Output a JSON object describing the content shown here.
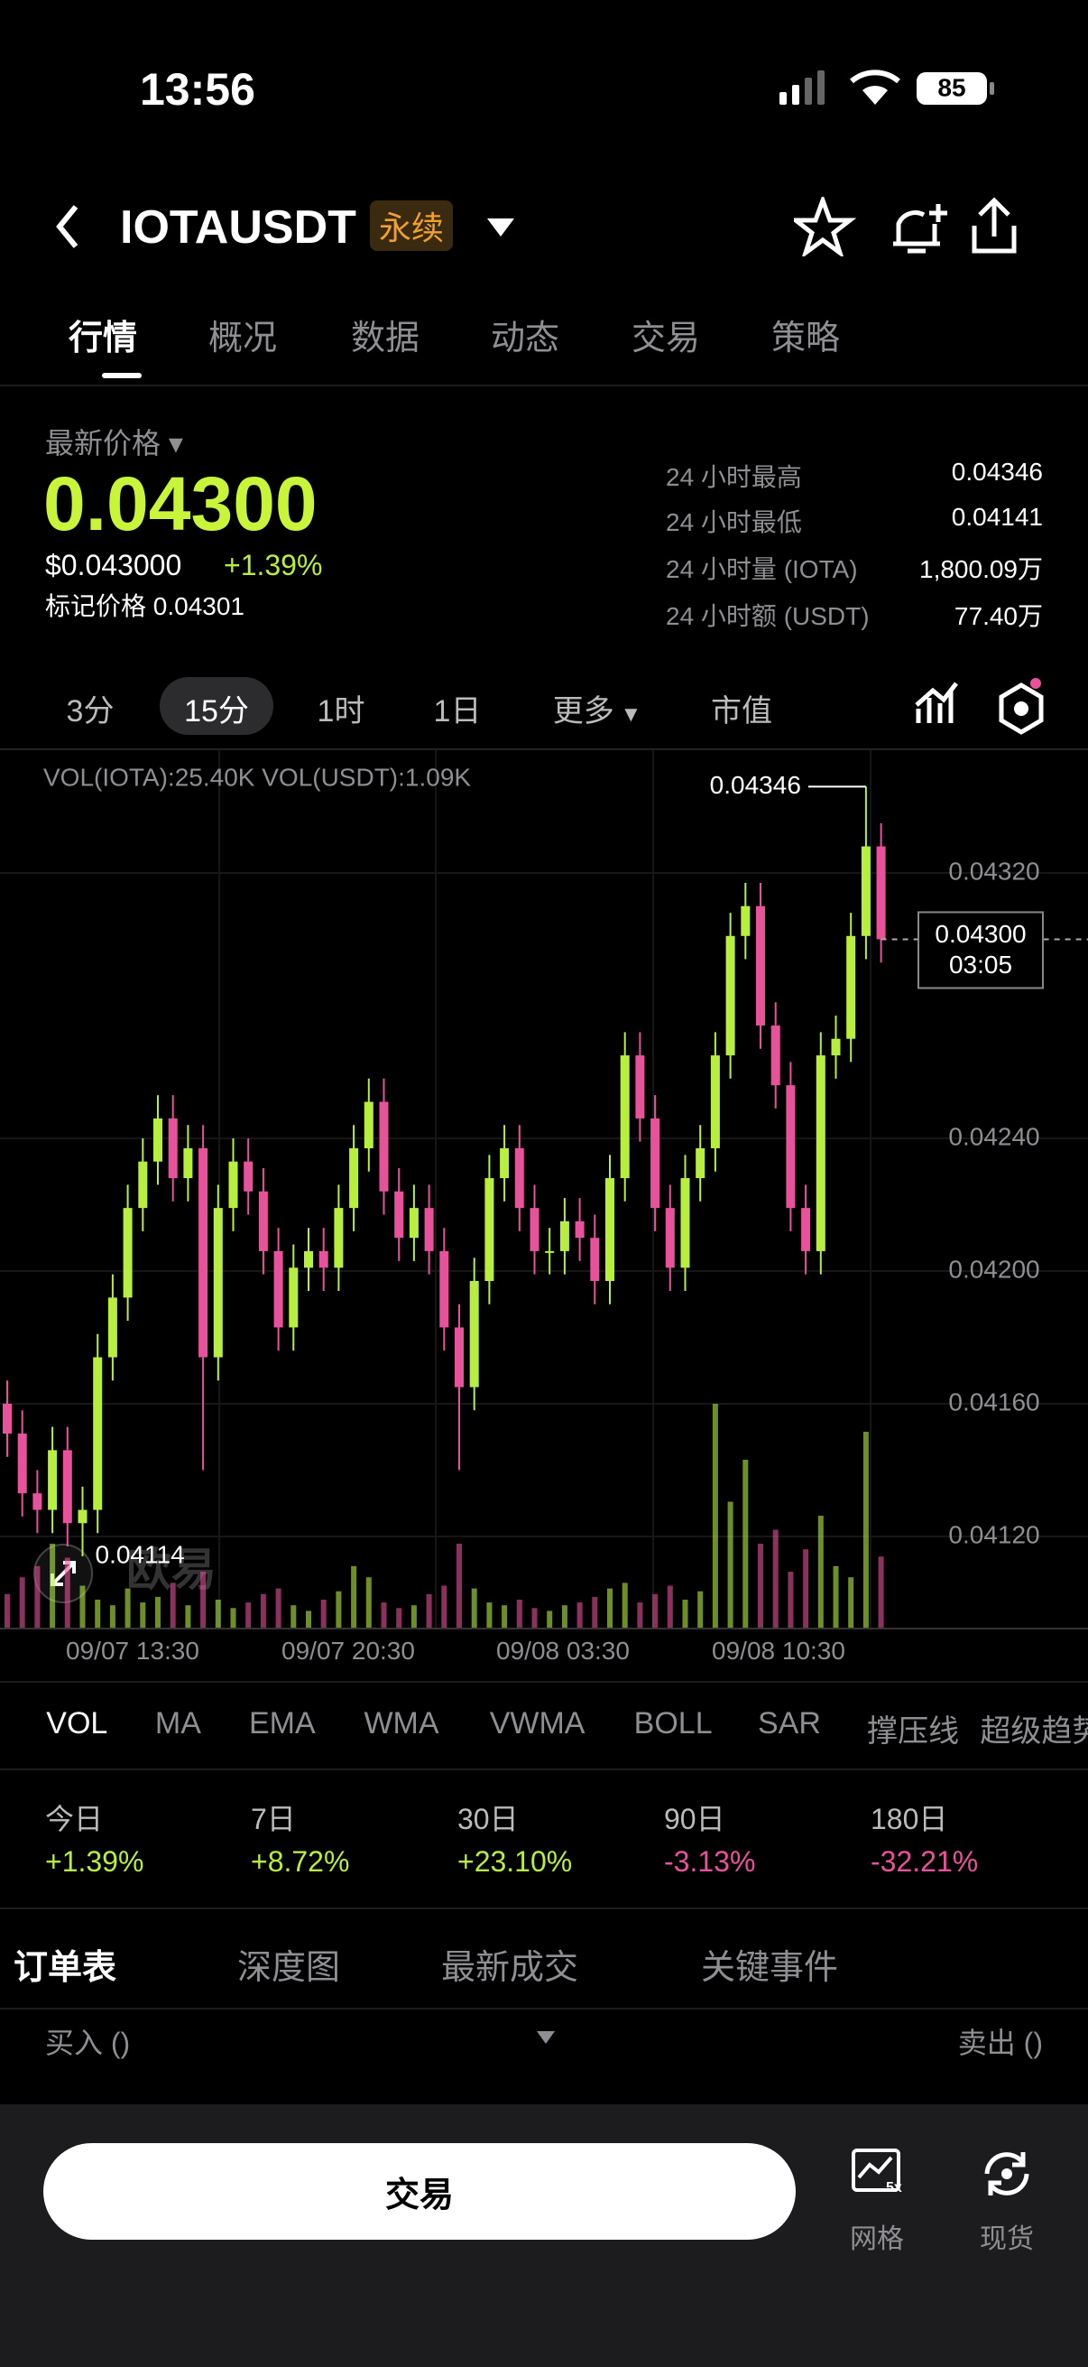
{
  "status": {
    "time": "13:56",
    "battery": "85"
  },
  "header": {
    "symbol": "IOTAUSDT",
    "tag": "永续"
  },
  "tabs": [
    "行情",
    "概况",
    "数据",
    "动态",
    "交易",
    "策略"
  ],
  "price": {
    "label": "最新价格",
    "last": "0.04300",
    "usd": "$0.043000",
    "change": "+1.39%",
    "mark": "标记价格 0.04301"
  },
  "stats": [
    {
      "label": "24 小时最高",
      "value": "0.04346"
    },
    {
      "label": "24 小时最低",
      "value": "0.04141"
    },
    {
      "label": "24 小时量 (IOTA)",
      "value": "1,800.09万"
    },
    {
      "label": "24 小时额 (USDT)",
      "value": "77.40万"
    }
  ],
  "intervals": [
    "3分",
    "15分",
    "1时",
    "1日",
    "更多",
    "市值"
  ],
  "chart": {
    "type": "candlestick",
    "vol_label": "VOL(IOTA):25.40K VOL(USDT):1.09K",
    "high_label": "0.04346",
    "low_label": "0.04114",
    "last_label": "0.04300",
    "countdown": "03:05",
    "ylim": [
      0.040925,
      0.04357
    ],
    "yticks": [
      {
        "value": 0.0432,
        "label": "0.04320"
      },
      {
        "value": 0.0424,
        "label": "0.04240"
      },
      {
        "value": 0.042,
        "label": "0.04200"
      },
      {
        "value": 0.0416,
        "label": "0.04160"
      },
      {
        "value": 0.0412,
        "label": "0.04120"
      }
    ],
    "up_color": "#b8ef3e",
    "down_color": "#e8529b",
    "xlabels": [
      "09/07 13:30",
      "09/07 20:30",
      "09/08 03:30",
      "09/08 10:30"
    ],
    "candles": [
      [
        0.0416,
        0.04167,
        0.04144,
        0.04151
      ],
      [
        0.04151,
        0.04158,
        0.04126,
        0.04133
      ],
      [
        0.04133,
        0.0414,
        0.04121,
        0.04128
      ],
      [
        0.04128,
        0.04153,
        0.04121,
        0.04146
      ],
      [
        0.04146,
        0.04153,
        0.04117,
        0.04124
      ],
      [
        0.04124,
        0.04135,
        0.04114,
        0.04128
      ],
      [
        0.04128,
        0.04181,
        0.04121,
        0.04174
      ],
      [
        0.04174,
        0.04199,
        0.04167,
        0.04192
      ],
      [
        0.04192,
        0.04226,
        0.04185,
        0.04219
      ],
      [
        0.04219,
        0.0424,
        0.04212,
        0.04233
      ],
      [
        0.04233,
        0.04253,
        0.04226,
        0.04246
      ],
      [
        0.04246,
        0.04253,
        0.04221,
        0.04228
      ],
      [
        0.04228,
        0.04244,
        0.04221,
        0.04237
      ],
      [
        0.04237,
        0.04244,
        0.0414,
        0.04174
      ],
      [
        0.04174,
        0.04226,
        0.04167,
        0.04219
      ],
      [
        0.04219,
        0.0424,
        0.04212,
        0.04233
      ],
      [
        0.04233,
        0.0424,
        0.04217,
        0.04224
      ],
      [
        0.04224,
        0.04231,
        0.04199,
        0.04206
      ],
      [
        0.04206,
        0.04213,
        0.04176,
        0.04183
      ],
      [
        0.04183,
        0.04208,
        0.04176,
        0.04201
      ],
      [
        0.04201,
        0.04213,
        0.04194,
        0.04206
      ],
      [
        0.04206,
        0.04213,
        0.04194,
        0.04201
      ],
      [
        0.04201,
        0.04226,
        0.04194,
        0.04219
      ],
      [
        0.04219,
        0.04244,
        0.04212,
        0.04237
      ],
      [
        0.04237,
        0.04258,
        0.0423,
        0.04251
      ],
      [
        0.04251,
        0.04258,
        0.04217,
        0.04224
      ],
      [
        0.04224,
        0.04231,
        0.04203,
        0.0421
      ],
      [
        0.0421,
        0.04226,
        0.04203,
        0.04219
      ],
      [
        0.04219,
        0.04226,
        0.04199,
        0.04206
      ],
      [
        0.04206,
        0.04213,
        0.04176,
        0.04183
      ],
      [
        0.04183,
        0.0419,
        0.0414,
        0.04165
      ],
      [
        0.04165,
        0.04204,
        0.04158,
        0.04197
      ],
      [
        0.04197,
        0.04235,
        0.0419,
        0.04228
      ],
      [
        0.04228,
        0.04244,
        0.04221,
        0.04237
      ],
      [
        0.04237,
        0.04244,
        0.04212,
        0.04219
      ],
      [
        0.04219,
        0.04226,
        0.04199,
        0.04206
      ],
      [
        0.04206,
        0.04213,
        0.04199,
        0.04206
      ],
      [
        0.04206,
        0.04222,
        0.04199,
        0.04215
      ],
      [
        0.04215,
        0.04222,
        0.04203,
        0.0421
      ],
      [
        0.0421,
        0.04217,
        0.0419,
        0.04197
      ],
      [
        0.04197,
        0.04235,
        0.0419,
        0.04228
      ],
      [
        0.04228,
        0.04272,
        0.04221,
        0.04265
      ],
      [
        0.04265,
        0.04272,
        0.04239,
        0.04246
      ],
      [
        0.04246,
        0.04253,
        0.04212,
        0.04219
      ],
      [
        0.04219,
        0.04226,
        0.04194,
        0.04201
      ],
      [
        0.04201,
        0.04235,
        0.04194,
        0.04228
      ],
      [
        0.04228,
        0.04244,
        0.04221,
        0.04237
      ],
      [
        0.04237,
        0.04272,
        0.0423,
        0.04265
      ],
      [
        0.04265,
        0.04308,
        0.04258,
        0.04301
      ],
      [
        0.04301,
        0.04317,
        0.04294,
        0.0431
      ],
      [
        0.0431,
        0.04317,
        0.04267,
        0.04274
      ],
      [
        0.04274,
        0.04281,
        0.04249,
        0.04256
      ],
      [
        0.04256,
        0.04263,
        0.04212,
        0.04219
      ],
      [
        0.04219,
        0.04226,
        0.04199,
        0.04206
      ],
      [
        0.04206,
        0.04272,
        0.04199,
        0.04265
      ],
      [
        0.04265,
        0.04277,
        0.04258,
        0.0427
      ],
      [
        0.0427,
        0.04308,
        0.04263,
        0.04301
      ],
      [
        0.04301,
        0.04346,
        0.04294,
        0.04328
      ],
      [
        0.04328,
        0.04335,
        0.04293,
        0.043
      ]
    ],
    "volumes": [
      12,
      18,
      22,
      30,
      25,
      15,
      10,
      8,
      14,
      9,
      11,
      16,
      8,
      20,
      10,
      7,
      9,
      12,
      14,
      8,
      6,
      10,
      13,
      22,
      18,
      9,
      7,
      8,
      12,
      15,
      30,
      14,
      9,
      8,
      10,
      7,
      6,
      8,
      9,
      11,
      14,
      16,
      9,
      12,
      15,
      10,
      13,
      80,
      45,
      60,
      30,
      35,
      20,
      28,
      40,
      22,
      18,
      70,
      25.4
    ]
  },
  "indicators": [
    "VOL",
    "MA",
    "EMA",
    "WMA",
    "VWMA",
    "BOLL",
    "SAR",
    "撑压线",
    "超级趋势"
  ],
  "performance": [
    {
      "period": "今日",
      "change": "+1.39%"
    },
    {
      "period": "7日",
      "change": "+8.72%"
    },
    {
      "period": "30日",
      "change": "+23.10%"
    },
    {
      "period": "90日",
      "change": "-3.13%"
    },
    {
      "period": "180日",
      "change": "-32.21%"
    }
  ],
  "orders": {
    "tabs": [
      "订单表",
      "深度图",
      "最新成交",
      "关键事件"
    ],
    "buy": "买入 ()",
    "sell": "卖出 ()"
  },
  "bottom": {
    "button": "交易",
    "grid": "网格",
    "spot": "现货"
  }
}
